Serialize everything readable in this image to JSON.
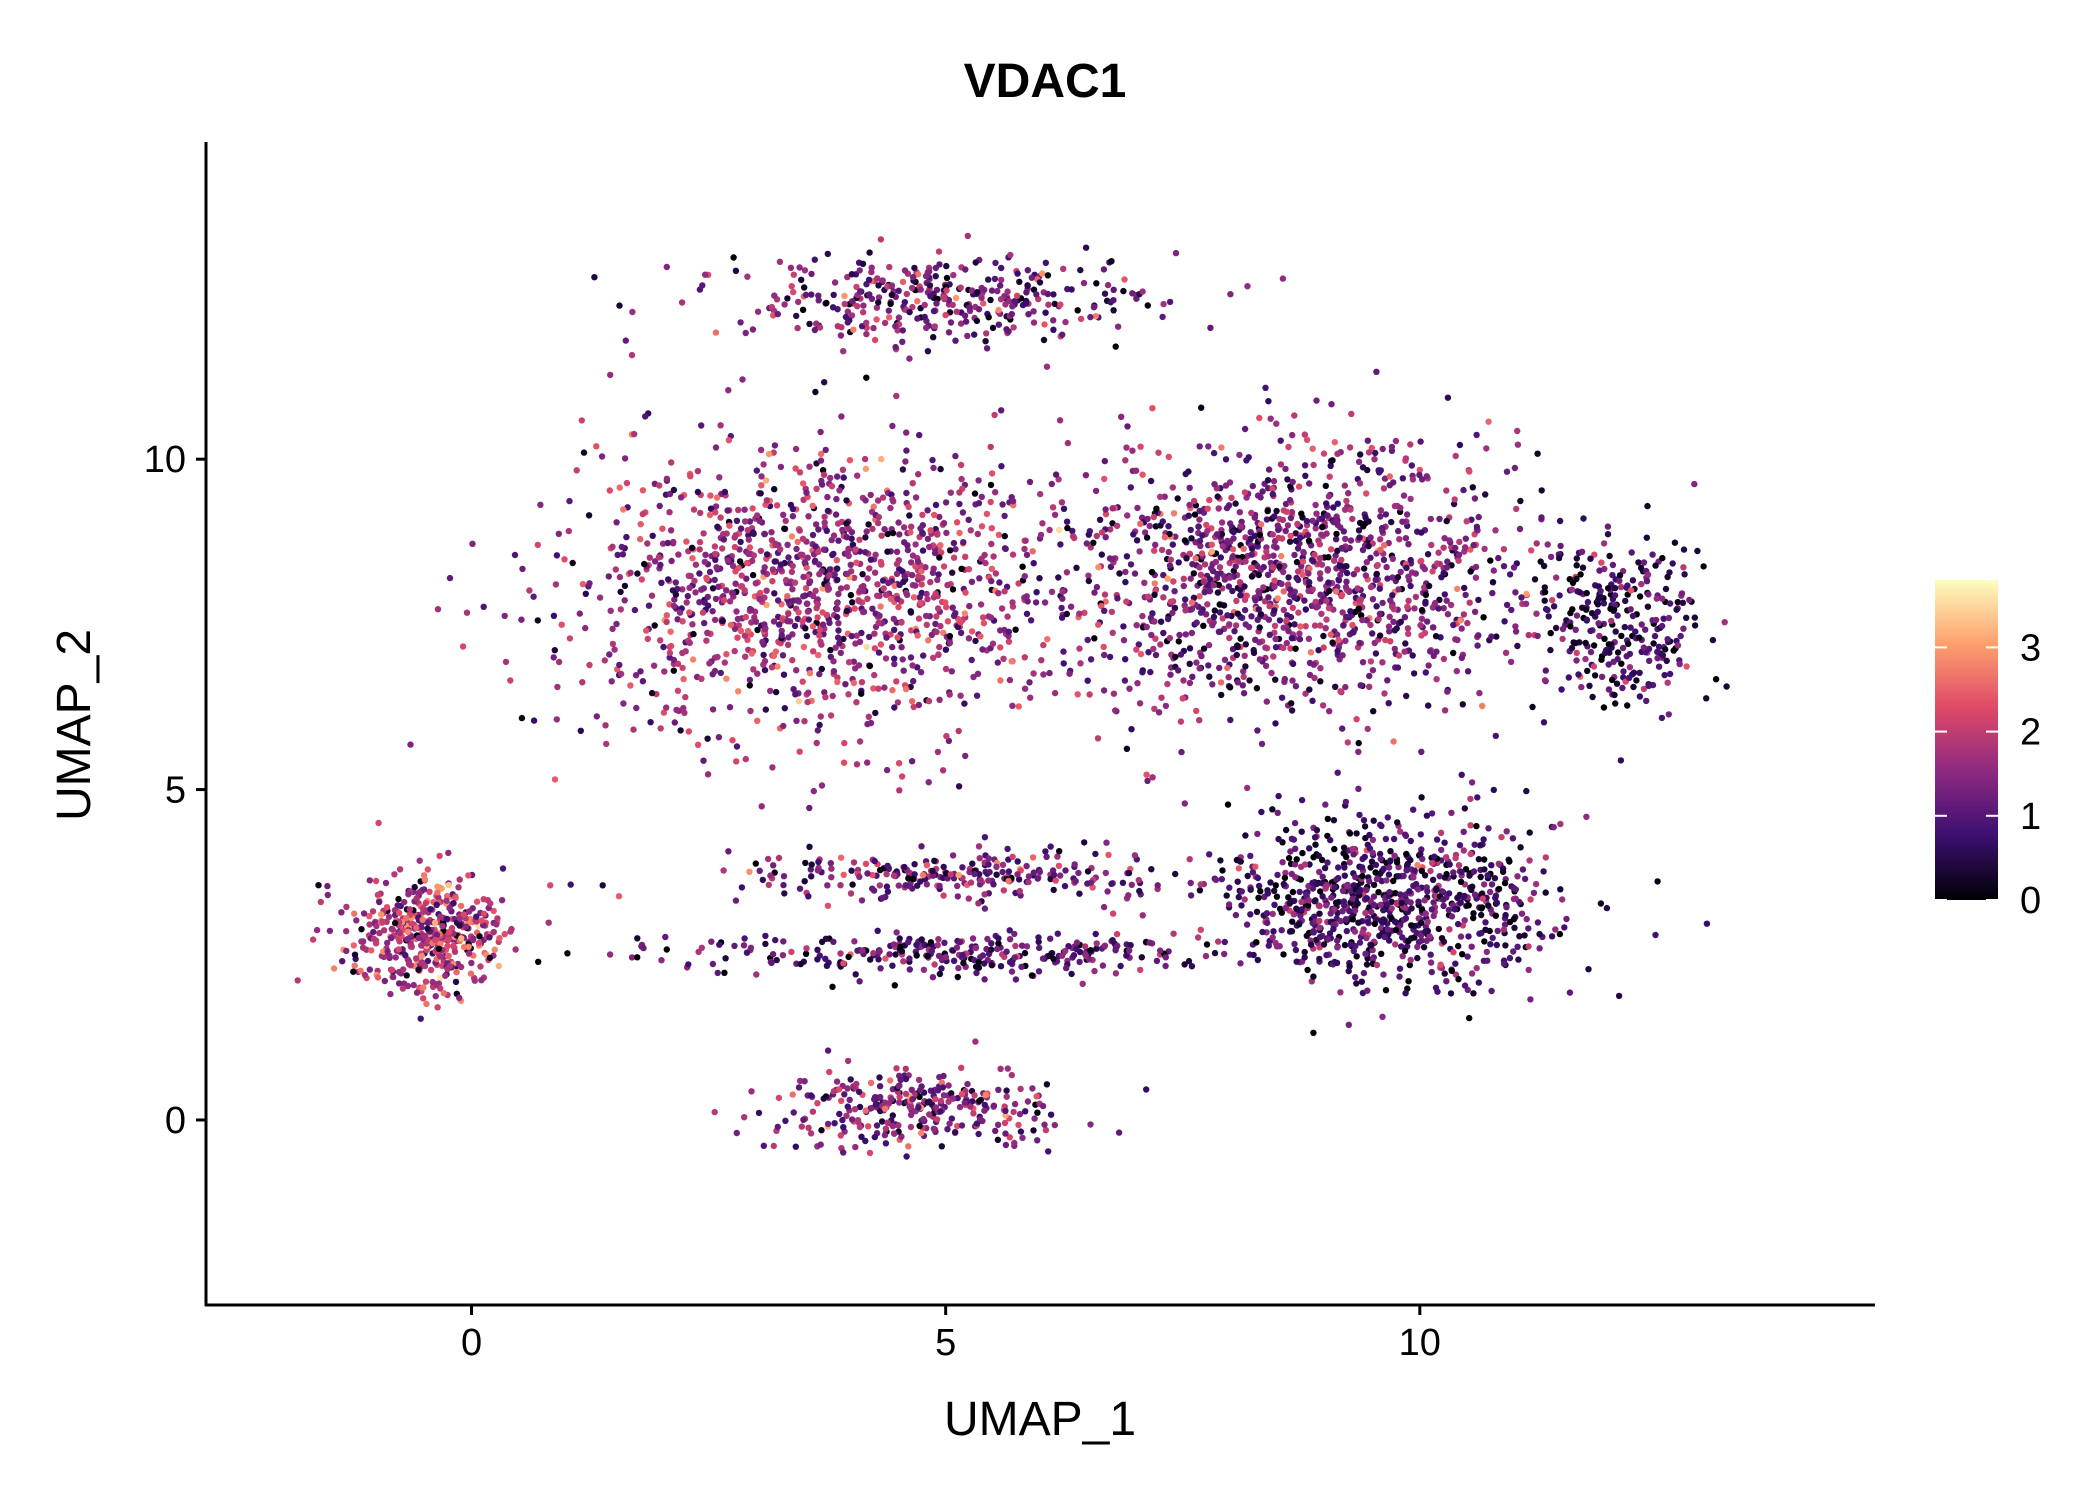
{
  "chart_data": {
    "type": "scatter",
    "title": "VDAC1",
    "xlabel": "UMAP_1",
    "ylabel": "UMAP_2",
    "xlim": [
      -2.8,
      14.8
    ],
    "ylim": [
      -2.8,
      14.8
    ],
    "x_ticks": [
      0,
      5,
      10
    ],
    "x_tick_labels": [
      "0",
      "5",
      "10"
    ],
    "y_ticks": [
      0,
      5,
      10
    ],
    "y_tick_labels": [
      "0",
      "5",
      "10"
    ],
    "grid": false,
    "legend_position": "right",
    "colorbar": {
      "range": [
        0,
        3.8
      ],
      "ticks": [
        0,
        1,
        2,
        3
      ],
      "tick_labels": [
        "0",
        "1",
        "2",
        "3"
      ],
      "colors": [
        "#000004",
        "#3b0f70",
        "#8c2981",
        "#de4968",
        "#fe9f6d",
        "#fcfdbf"
      ]
    },
    "clusters": [
      {
        "name": "main-left-center",
        "cx": 3.6,
        "cy": 8.0,
        "sx": 2.4,
        "sy": 2.0,
        "n": 1300,
        "mean_expr": 1.6
      },
      {
        "name": "main-right-center",
        "cx": 8.6,
        "cy": 8.2,
        "sx": 2.3,
        "sy": 1.8,
        "n": 1400,
        "mean_expr": 1.35
      },
      {
        "name": "main-top-arc",
        "cx": 5.0,
        "cy": 12.4,
        "sx": 2.2,
        "sy": 0.6,
        "n": 380,
        "mean_expr": 1.3
      },
      {
        "name": "main-far-right",
        "cx": 12.1,
        "cy": 7.6,
        "sx": 0.8,
        "sy": 1.2,
        "n": 280,
        "mean_expr": 0.7
      },
      {
        "name": "lower-right-lobe",
        "cx": 9.7,
        "cy": 3.3,
        "sx": 1.6,
        "sy": 1.1,
        "n": 900,
        "mean_expr": 0.9
      },
      {
        "name": "left-cluster",
        "cx": -0.5,
        "cy": 2.8,
        "sx": 0.75,
        "sy": 0.8,
        "n": 500,
        "mean_expr": 1.9
      },
      {
        "name": "bottom-cluster",
        "cx": 4.7,
        "cy": 0.2,
        "sx": 1.4,
        "sy": 0.55,
        "n": 320,
        "mean_expr": 1.45
      },
      {
        "name": "middle-band",
        "cx": 5.0,
        "cy": 2.5,
        "sx": 2.5,
        "sy": 0.3,
        "n": 300,
        "mean_expr": 1.0
      },
      {
        "name": "middle-arc",
        "cx": 5.2,
        "cy": 3.7,
        "sx": 1.9,
        "sy": 0.35,
        "n": 260,
        "mean_expr": 1.3
      }
    ]
  }
}
